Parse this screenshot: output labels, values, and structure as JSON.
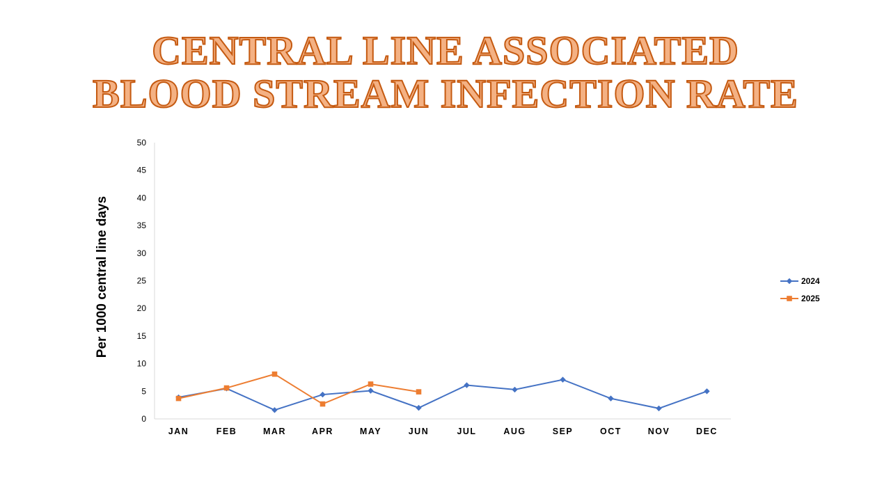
{
  "chart_data": {
    "type": "line",
    "title_lines": [
      "CENTRAL LINE ASSOCIATED",
      "BLOOD STREAM INFECTION RATE"
    ],
    "xlabel": "",
    "ylabel": "Per 1000 central line days",
    "ylim": [
      0,
      50
    ],
    "yticks": [
      0,
      5,
      10,
      15,
      20,
      25,
      30,
      35,
      40,
      45,
      50
    ],
    "categories": [
      "JAN",
      "FEB",
      "MAR",
      "APR",
      "MAY",
      "JUN",
      "JUL",
      "AUG",
      "SEP",
      "OCT",
      "NOV",
      "DEC"
    ],
    "grid": false,
    "legend_position": "right",
    "series": [
      {
        "name": "2024",
        "color": "#4472c4",
        "marker": "diamond",
        "values": [
          3.9,
          5.5,
          1.6,
          4.4,
          5.1,
          2.0,
          6.1,
          5.3,
          7.1,
          3.7,
          1.9,
          5.0
        ]
      },
      {
        "name": "2025",
        "color": "#ed7d31",
        "marker": "square",
        "values": [
          3.7,
          5.6,
          8.1,
          2.7,
          6.3,
          4.9,
          null,
          null,
          null,
          null,
          null,
          null
        ]
      }
    ]
  }
}
